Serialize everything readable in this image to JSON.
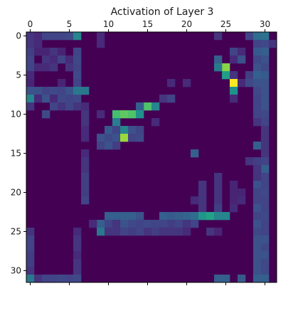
{
  "chart_data": {
    "type": "heatmap",
    "title": "Activation of Layer 3",
    "colormap": "viridis",
    "vmin": 0,
    "vmax": 1,
    "x_range": [
      0,
      31
    ],
    "y_range": [
      0,
      31
    ],
    "x_ticks": [
      0,
      5,
      10,
      15,
      20,
      25,
      30
    ],
    "y_ticks": [
      0,
      5,
      10,
      15,
      20,
      25,
      30
    ],
    "x_axis_position": "top",
    "y_axis_inverted": true,
    "grid": false,
    "background_value": 0,
    "cells": [
      {
        "x": 0,
        "y": 0,
        "v": 0.15
      },
      {
        "x": 0,
        "y": 1,
        "v": 0.15
      },
      {
        "x": 0,
        "y": 2,
        "v": 0.18
      },
      {
        "x": 0,
        "y": 3,
        "v": 0.2
      },
      {
        "x": 0,
        "y": 4,
        "v": 0.2
      },
      {
        "x": 0,
        "y": 5,
        "v": 0.12
      },
      {
        "x": 0,
        "y": 6,
        "v": 0.1
      },
      {
        "x": 1,
        "y": 0,
        "v": 0.12
      },
      {
        "x": 1,
        "y": 1,
        "v": 0.12
      },
      {
        "x": 1,
        "y": 2,
        "v": 0.1
      },
      {
        "x": 2,
        "y": 0,
        "v": 0.2
      },
      {
        "x": 3,
        "y": 0,
        "v": 0.2
      },
      {
        "x": 4,
        "y": 0,
        "v": 0.2
      },
      {
        "x": 5,
        "y": 0,
        "v": 0.22
      },
      {
        "x": 6,
        "y": 0,
        "v": 0.45
      },
      {
        "x": 9,
        "y": 0,
        "v": 0.12
      },
      {
        "x": 9,
        "y": 1,
        "v": 0.12
      },
      {
        "x": 24,
        "y": 0,
        "v": 0.15
      },
      {
        "x": 28,
        "y": 0,
        "v": 0.2
      },
      {
        "x": 29,
        "y": 0,
        "v": 0.35
      },
      {
        "x": 30,
        "y": 0,
        "v": 0.38
      },
      {
        "x": 29,
        "y": 1,
        "v": 0.2
      },
      {
        "x": 30,
        "y": 1,
        "v": 0.22
      },
      {
        "x": 31,
        "y": 1,
        "v": 0.15
      },
      {
        "x": 26,
        "y": 2,
        "v": 0.2
      },
      {
        "x": 27,
        "y": 2,
        "v": 0.12
      },
      {
        "x": 29,
        "y": 2,
        "v": 0.28
      },
      {
        "x": 30,
        "y": 2,
        "v": 0.3
      },
      {
        "x": 2,
        "y": 2,
        "v": 0.1
      },
      {
        "x": 3,
        "y": 2,
        "v": 0.15
      },
      {
        "x": 4,
        "y": 2,
        "v": 0.1
      },
      {
        "x": 6,
        "y": 2,
        "v": 0.2
      },
      {
        "x": 24,
        "y": 3,
        "v": 0.3
      },
      {
        "x": 26,
        "y": 3,
        "v": 0.12
      },
      {
        "x": 27,
        "y": 3,
        "v": 0.25
      },
      {
        "x": 29,
        "y": 3,
        "v": 0.22
      },
      {
        "x": 30,
        "y": 3,
        "v": 0.25
      },
      {
        "x": 2,
        "y": 3,
        "v": 0.15
      },
      {
        "x": 3,
        "y": 3,
        "v": 0.12
      },
      {
        "x": 4,
        "y": 3,
        "v": 0.2
      },
      {
        "x": 5,
        "y": 3,
        "v": 0.12
      },
      {
        "x": 6,
        "y": 3,
        "v": 0.22
      },
      {
        "x": 25,
        "y": 4,
        "v": 0.82
      },
      {
        "x": 24,
        "y": 4,
        "v": 0.4
      },
      {
        "x": 29,
        "y": 4,
        "v": 0.25
      },
      {
        "x": 30,
        "y": 4,
        "v": 0.22
      },
      {
        "x": 1,
        "y": 4,
        "v": 0.12
      },
      {
        "x": 2,
        "y": 4,
        "v": 0.12
      },
      {
        "x": 3,
        "y": 4,
        "v": 0.15
      },
      {
        "x": 5,
        "y": 4,
        "v": 0.15
      },
      {
        "x": 6,
        "y": 4,
        "v": 0.2
      },
      {
        "x": 25,
        "y": 5,
        "v": 0.55
      },
      {
        "x": 26,
        "y": 5,
        "v": 0.15
      },
      {
        "x": 28,
        "y": 5,
        "v": 0.18
      },
      {
        "x": 29,
        "y": 5,
        "v": 0.3
      },
      {
        "x": 30,
        "y": 5,
        "v": 0.28
      },
      {
        "x": 6,
        "y": 5,
        "v": 0.22
      },
      {
        "x": 26,
        "y": 6,
        "v": 1.0
      },
      {
        "x": 27,
        "y": 6,
        "v": 0.12
      },
      {
        "x": 28,
        "y": 6,
        "v": 0.22
      },
      {
        "x": 29,
        "y": 6,
        "v": 0.25
      },
      {
        "x": 30,
        "y": 6,
        "v": 0.25
      },
      {
        "x": 4,
        "y": 6,
        "v": 0.1
      },
      {
        "x": 6,
        "y": 6,
        "v": 0.2
      },
      {
        "x": 18,
        "y": 6,
        "v": 0.12
      },
      {
        "x": 20,
        "y": 6,
        "v": 0.12
      },
      {
        "x": 0,
        "y": 7,
        "v": 0.25
      },
      {
        "x": 1,
        "y": 7,
        "v": 0.25
      },
      {
        "x": 2,
        "y": 7,
        "v": 0.2
      },
      {
        "x": 3,
        "y": 7,
        "v": 0.22
      },
      {
        "x": 4,
        "y": 7,
        "v": 0.2
      },
      {
        "x": 5,
        "y": 7,
        "v": 0.25
      },
      {
        "x": 6,
        "y": 7,
        "v": 0.4
      },
      {
        "x": 7,
        "y": 7,
        "v": 0.4
      },
      {
        "x": 26,
        "y": 7,
        "v": 0.5
      },
      {
        "x": 29,
        "y": 7,
        "v": 0.22
      },
      {
        "x": 30,
        "y": 7,
        "v": 0.25
      },
      {
        "x": 0,
        "y": 8,
        "v": 0.45
      },
      {
        "x": 1,
        "y": 8,
        "v": 0.12
      },
      {
        "x": 2,
        "y": 8,
        "v": 0.25
      },
      {
        "x": 3,
        "y": 8,
        "v": 0.12
      },
      {
        "x": 4,
        "y": 8,
        "v": 0.22
      },
      {
        "x": 5,
        "y": 8,
        "v": 0.2
      },
      {
        "x": 6,
        "y": 8,
        "v": 0.22
      },
      {
        "x": 17,
        "y": 8,
        "v": 0.15
      },
      {
        "x": 18,
        "y": 8,
        "v": 0.2
      },
      {
        "x": 26,
        "y": 8,
        "v": 0.12
      },
      {
        "x": 29,
        "y": 8,
        "v": 0.2
      },
      {
        "x": 30,
        "y": 8,
        "v": 0.25
      },
      {
        "x": 0,
        "y": 9,
        "v": 0.15
      },
      {
        "x": 3,
        "y": 9,
        "v": 0.2
      },
      {
        "x": 4,
        "y": 9,
        "v": 0.15
      },
      {
        "x": 5,
        "y": 9,
        "v": 0.2
      },
      {
        "x": 6,
        "y": 9,
        "v": 0.15
      },
      {
        "x": 7,
        "y": 9,
        "v": 0.12
      },
      {
        "x": 15,
        "y": 9,
        "v": 0.72
      },
      {
        "x": 16,
        "y": 9,
        "v": 0.45
      },
      {
        "x": 14,
        "y": 9,
        "v": 0.3
      },
      {
        "x": 29,
        "y": 9,
        "v": 0.2
      },
      {
        "x": 30,
        "y": 9,
        "v": 0.25
      },
      {
        "x": 2,
        "y": 10,
        "v": 0.22
      },
      {
        "x": 7,
        "y": 10,
        "v": 0.15
      },
      {
        "x": 11,
        "y": 10,
        "v": 0.7
      },
      {
        "x": 12,
        "y": 10,
        "v": 0.75
      },
      {
        "x": 13,
        "y": 10,
        "v": 0.72
      },
      {
        "x": 14,
        "y": 10,
        "v": 0.5
      },
      {
        "x": 9,
        "y": 10,
        "v": 0.12
      },
      {
        "x": 29,
        "y": 10,
        "v": 0.2
      },
      {
        "x": 30,
        "y": 10,
        "v": 0.22
      },
      {
        "x": 7,
        "y": 11,
        "v": 0.15
      },
      {
        "x": 11,
        "y": 11,
        "v": 0.42
      },
      {
        "x": 16,
        "y": 11,
        "v": 0.12
      },
      {
        "x": 29,
        "y": 11,
        "v": 0.15
      },
      {
        "x": 30,
        "y": 11,
        "v": 0.2
      },
      {
        "x": 7,
        "y": 12,
        "v": 0.12
      },
      {
        "x": 10,
        "y": 12,
        "v": 0.28
      },
      {
        "x": 11,
        "y": 12,
        "v": 0.2
      },
      {
        "x": 12,
        "y": 12,
        "v": 0.45
      },
      {
        "x": 13,
        "y": 12,
        "v": 0.25
      },
      {
        "x": 14,
        "y": 12,
        "v": 0.2
      },
      {
        "x": 30,
        "y": 12,
        "v": 0.15
      },
      {
        "x": 7,
        "y": 13,
        "v": 0.12
      },
      {
        "x": 9,
        "y": 13,
        "v": 0.25
      },
      {
        "x": 10,
        "y": 13,
        "v": 0.22
      },
      {
        "x": 11,
        "y": 13,
        "v": 0.25
      },
      {
        "x": 12,
        "y": 13,
        "v": 0.85
      },
      {
        "x": 13,
        "y": 13,
        "v": 0.2
      },
      {
        "x": 14,
        "y": 13,
        "v": 0.22
      },
      {
        "x": 30,
        "y": 13,
        "v": 0.15
      },
      {
        "x": 9,
        "y": 14,
        "v": 0.2
      },
      {
        "x": 10,
        "y": 14,
        "v": 0.25
      },
      {
        "x": 11,
        "y": 14,
        "v": 0.18
      },
      {
        "x": 29,
        "y": 14,
        "v": 0.3
      },
      {
        "x": 30,
        "y": 14,
        "v": 0.15
      },
      {
        "x": 7,
        "y": 15,
        "v": 0.12
      },
      {
        "x": 21,
        "y": 15,
        "v": 0.3
      },
      {
        "x": 30,
        "y": 15,
        "v": 0.15
      },
      {
        "x": 7,
        "y": 16,
        "v": 0.15
      },
      {
        "x": 28,
        "y": 16,
        "v": 0.15
      },
      {
        "x": 29,
        "y": 16,
        "v": 0.18
      },
      {
        "x": 30,
        "y": 16,
        "v": 0.2
      },
      {
        "x": 7,
        "y": 17,
        "v": 0.15
      },
      {
        "x": 30,
        "y": 17,
        "v": 0.3
      },
      {
        "x": 29,
        "y": 17,
        "v": 0.15
      },
      {
        "x": 7,
        "y": 18,
        "v": 0.18
      },
      {
        "x": 24,
        "y": 18,
        "v": 0.15
      },
      {
        "x": 29,
        "y": 18,
        "v": 0.15
      },
      {
        "x": 30,
        "y": 18,
        "v": 0.2
      },
      {
        "x": 7,
        "y": 19,
        "v": 0.18
      },
      {
        "x": 22,
        "y": 19,
        "v": 0.15
      },
      {
        "x": 24,
        "y": 19,
        "v": 0.15
      },
      {
        "x": 26,
        "y": 19,
        "v": 0.1
      },
      {
        "x": 29,
        "y": 19,
        "v": 0.25
      },
      {
        "x": 30,
        "y": 19,
        "v": 0.2
      },
      {
        "x": 7,
        "y": 20,
        "v": 0.18
      },
      {
        "x": 22,
        "y": 20,
        "v": 0.15
      },
      {
        "x": 24,
        "y": 20,
        "v": 0.15
      },
      {
        "x": 26,
        "y": 20,
        "v": 0.1
      },
      {
        "x": 27,
        "y": 20,
        "v": 0.1
      },
      {
        "x": 29,
        "y": 20,
        "v": 0.2
      },
      {
        "x": 30,
        "y": 20,
        "v": 0.22
      },
      {
        "x": 7,
        "y": 21,
        "v": 0.2
      },
      {
        "x": 21,
        "y": 21,
        "v": 0.12
      },
      {
        "x": 22,
        "y": 21,
        "v": 0.15
      },
      {
        "x": 24,
        "y": 21,
        "v": 0.15
      },
      {
        "x": 26,
        "y": 21,
        "v": 0.1
      },
      {
        "x": 27,
        "y": 21,
        "v": 0.12
      },
      {
        "x": 29,
        "y": 21,
        "v": 0.2
      },
      {
        "x": 30,
        "y": 21,
        "v": 0.2
      },
      {
        "x": 22,
        "y": 22,
        "v": 0.15
      },
      {
        "x": 24,
        "y": 22,
        "v": 0.18
      },
      {
        "x": 26,
        "y": 22,
        "v": 0.12
      },
      {
        "x": 29,
        "y": 22,
        "v": 0.25
      },
      {
        "x": 30,
        "y": 22,
        "v": 0.2
      },
      {
        "x": 10,
        "y": 23,
        "v": 0.3
      },
      {
        "x": 11,
        "y": 23,
        "v": 0.3
      },
      {
        "x": 12,
        "y": 23,
        "v": 0.3
      },
      {
        "x": 13,
        "y": 23,
        "v": 0.3
      },
      {
        "x": 14,
        "y": 23,
        "v": 0.25
      },
      {
        "x": 17,
        "y": 23,
        "v": 0.3
      },
      {
        "x": 18,
        "y": 23,
        "v": 0.28
      },
      {
        "x": 19,
        "y": 23,
        "v": 0.3
      },
      {
        "x": 20,
        "y": 23,
        "v": 0.32
      },
      {
        "x": 21,
        "y": 23,
        "v": 0.35
      },
      {
        "x": 22,
        "y": 23,
        "v": 0.52
      },
      {
        "x": 23,
        "y": 23,
        "v": 0.58
      },
      {
        "x": 24,
        "y": 23,
        "v": 0.45
      },
      {
        "x": 25,
        "y": 23,
        "v": 0.45
      },
      {
        "x": 29,
        "y": 23,
        "v": 0.2
      },
      {
        "x": 30,
        "y": 23,
        "v": 0.22
      },
      {
        "x": 9,
        "y": 24,
        "v": 0.3
      },
      {
        "x": 10,
        "y": 24,
        "v": 0.2
      },
      {
        "x": 11,
        "y": 24,
        "v": 0.15
      },
      {
        "x": 12,
        "y": 24,
        "v": 0.25
      },
      {
        "x": 13,
        "y": 24,
        "v": 0.22
      },
      {
        "x": 14,
        "y": 24,
        "v": 0.2
      },
      {
        "x": 15,
        "y": 24,
        "v": 0.22
      },
      {
        "x": 16,
        "y": 24,
        "v": 0.2
      },
      {
        "x": 17,
        "y": 24,
        "v": 0.2
      },
      {
        "x": 18,
        "y": 24,
        "v": 0.18
      },
      {
        "x": 19,
        "y": 24,
        "v": 0.2
      },
      {
        "x": 20,
        "y": 24,
        "v": 0.15
      },
      {
        "x": 21,
        "y": 24,
        "v": 0.2
      },
      {
        "x": 8,
        "y": 24,
        "v": 0.12
      },
      {
        "x": 29,
        "y": 24,
        "v": 0.25
      },
      {
        "x": 30,
        "y": 24,
        "v": 0.2
      },
      {
        "x": 9,
        "y": 25,
        "v": 0.4
      },
      {
        "x": 10,
        "y": 25,
        "v": 0.15
      },
      {
        "x": 11,
        "y": 25,
        "v": 0.15
      },
      {
        "x": 12,
        "y": 25,
        "v": 0.2
      },
      {
        "x": 13,
        "y": 25,
        "v": 0.18
      },
      {
        "x": 14,
        "y": 25,
        "v": 0.2
      },
      {
        "x": 15,
        "y": 25,
        "v": 0.15
      },
      {
        "x": 16,
        "y": 25,
        "v": 0.18
      },
      {
        "x": 17,
        "y": 25,
        "v": 0.15
      },
      {
        "x": 18,
        "y": 25,
        "v": 0.15
      },
      {
        "x": 19,
        "y": 25,
        "v": 0.15
      },
      {
        "x": 20,
        "y": 25,
        "v": 0.12
      },
      {
        "x": 23,
        "y": 25,
        "v": 0.15
      },
      {
        "x": 24,
        "y": 25,
        "v": 0.1
      },
      {
        "x": 0,
        "y": 25,
        "v": 0.15
      },
      {
        "x": 6,
        "y": 25,
        "v": 0.12
      },
      {
        "x": 29,
        "y": 25,
        "v": 0.22
      },
      {
        "x": 30,
        "y": 25,
        "v": 0.2
      },
      {
        "x": 0,
        "y": 26,
        "v": 0.2
      },
      {
        "x": 6,
        "y": 26,
        "v": 0.15
      },
      {
        "x": 29,
        "y": 26,
        "v": 0.25
      },
      {
        "x": 30,
        "y": 26,
        "v": 0.25
      },
      {
        "x": 0,
        "y": 27,
        "v": 0.2
      },
      {
        "x": 6,
        "y": 27,
        "v": 0.15
      },
      {
        "x": 29,
        "y": 27,
        "v": 0.25
      },
      {
        "x": 30,
        "y": 27,
        "v": 0.22
      },
      {
        "x": 0,
        "y": 28,
        "v": 0.18
      },
      {
        "x": 6,
        "y": 28,
        "v": 0.12
      },
      {
        "x": 29,
        "y": 28,
        "v": 0.25
      },
      {
        "x": 30,
        "y": 28,
        "v": 0.25
      },
      {
        "x": 0,
        "y": 29,
        "v": 0.18
      },
      {
        "x": 6,
        "y": 29,
        "v": 0.15
      },
      {
        "x": 29,
        "y": 29,
        "v": 0.25
      },
      {
        "x": 30,
        "y": 29,
        "v": 0.22
      },
      {
        "x": 0,
        "y": 30,
        "v": 0.15
      },
      {
        "x": 6,
        "y": 30,
        "v": 0.15
      },
      {
        "x": 29,
        "y": 30,
        "v": 0.25
      },
      {
        "x": 30,
        "y": 30,
        "v": 0.22
      },
      {
        "x": 0,
        "y": 31,
        "v": 0.4
      },
      {
        "x": 1,
        "y": 31,
        "v": 0.15
      },
      {
        "x": 2,
        "y": 31,
        "v": 0.2
      },
      {
        "x": 3,
        "y": 31,
        "v": 0.2
      },
      {
        "x": 4,
        "y": 31,
        "v": 0.22
      },
      {
        "x": 5,
        "y": 31,
        "v": 0.2
      },
      {
        "x": 6,
        "y": 31,
        "v": 0.22
      },
      {
        "x": 24,
        "y": 31,
        "v": 0.3
      },
      {
        "x": 25,
        "y": 31,
        "v": 0.3
      },
      {
        "x": 27,
        "y": 31,
        "v": 0.28
      },
      {
        "x": 29,
        "y": 31,
        "v": 0.3
      },
      {
        "x": 30,
        "y": 31,
        "v": 0.3
      }
    ]
  }
}
